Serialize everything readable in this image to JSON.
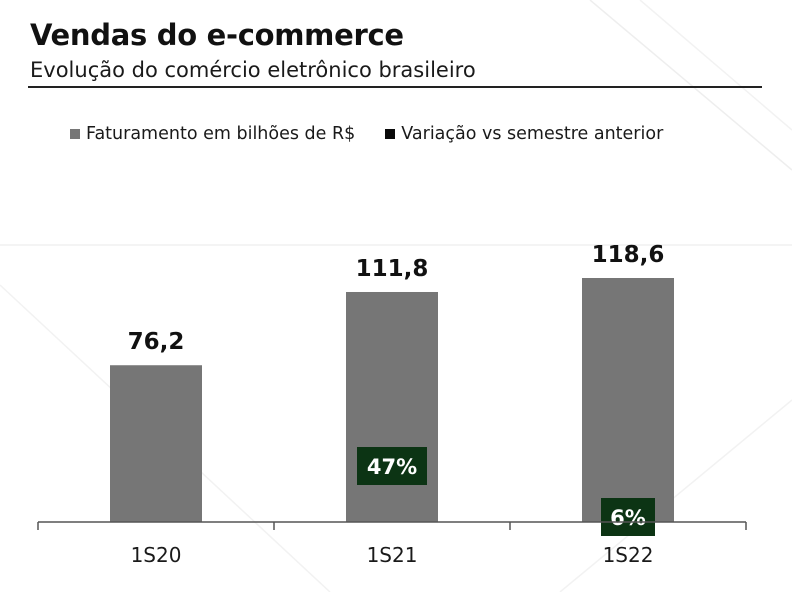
{
  "header": {
    "title": "Vendas do e-commerce",
    "subtitle": "Evolução do comércio eletrônico brasileiro"
  },
  "legend": [
    {
      "label": "Faturamento em bilhões de R$",
      "color": "#767676"
    },
    {
      "label": "Variação vs semestre anterior",
      "color": "#0a0a0a"
    }
  ],
  "chart_data": {
    "type": "bar",
    "categories": [
      "1S20",
      "1S21",
      "1S22"
    ],
    "series": [
      {
        "name": "Faturamento em bilhões de R$",
        "values": [
          76.2,
          111.8,
          118.6
        ],
        "labels": [
          "76,2",
          "111,8",
          "118,6"
        ],
        "color": "#767676"
      },
      {
        "name": "Variação vs semestre anterior",
        "values": [
          null,
          47,
          6
        ],
        "labels": [
          "",
          "47%",
          "6%"
        ],
        "color": "#0c3414"
      }
    ],
    "ylim": [
      0,
      120
    ],
    "grid": false,
    "legend_position": "top-left"
  }
}
